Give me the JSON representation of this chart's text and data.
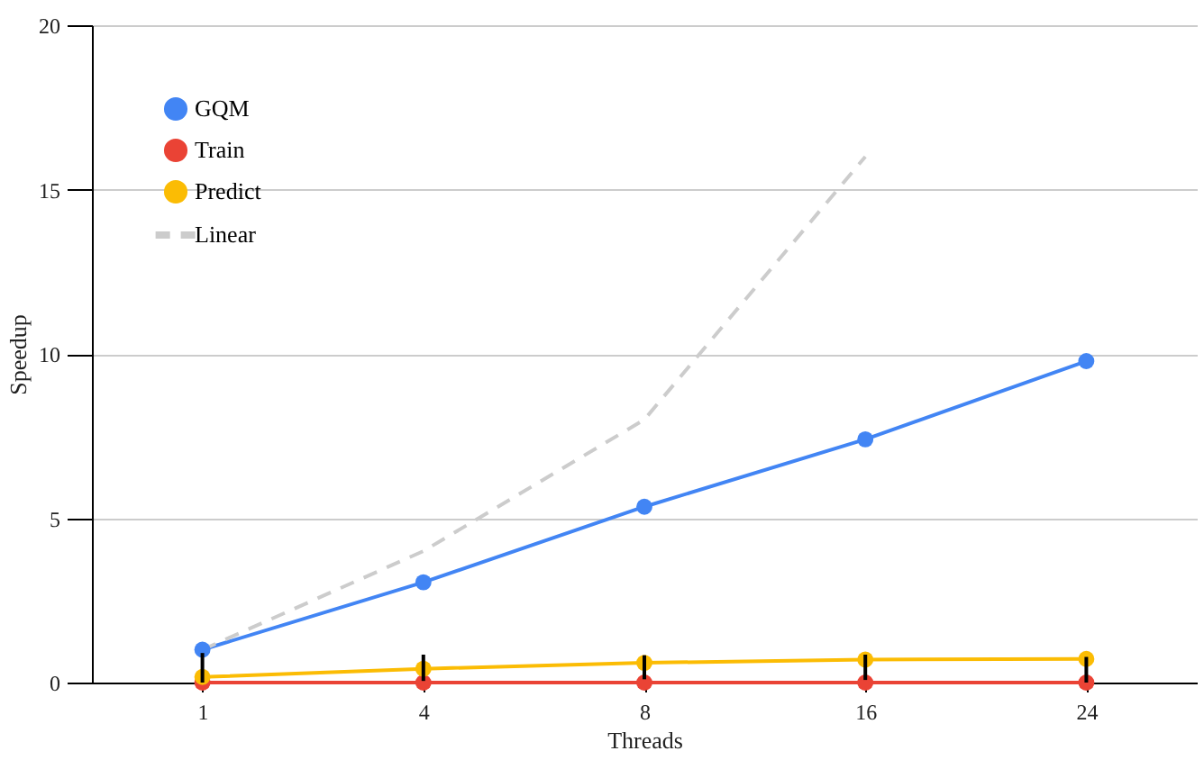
{
  "chart_data": {
    "type": "line",
    "xlabel": "Threads",
    "ylabel": "Speedup",
    "categories": [
      "1",
      "4",
      "8",
      "16",
      "24"
    ],
    "ylim": [
      0,
      20
    ],
    "yticks": [
      0,
      5,
      10,
      15,
      20
    ],
    "grid": "y",
    "legend": "top left",
    "series": [
      {
        "name": "GQM",
        "color": "#4285f4",
        "marker": "circle",
        "values": [
          1.0,
          3.05,
          5.35,
          7.4,
          9.78
        ]
      },
      {
        "name": "Train",
        "color": "#ea4335",
        "marker": "circle",
        "values": [
          0,
          0,
          0,
          0,
          0
        ]
      },
      {
        "name": "Predict",
        "color": "#fbbc04",
        "marker": "circle",
        "values": [
          0.17,
          0.42,
          0.6,
          0.7,
          0.72
        ],
        "errors": [
          [
            0,
            0.9
          ],
          [
            0.05,
            0.85
          ],
          [
            0.1,
            0.83
          ],
          [
            0.08,
            0.85
          ],
          [
            0.0,
            0.78
          ]
        ]
      },
      {
        "name": "Linear",
        "color": "#cccccc",
        "marker": "none",
        "line_style": "dashed",
        "values": [
          1,
          4,
          8,
          16,
          null
        ]
      }
    ]
  }
}
